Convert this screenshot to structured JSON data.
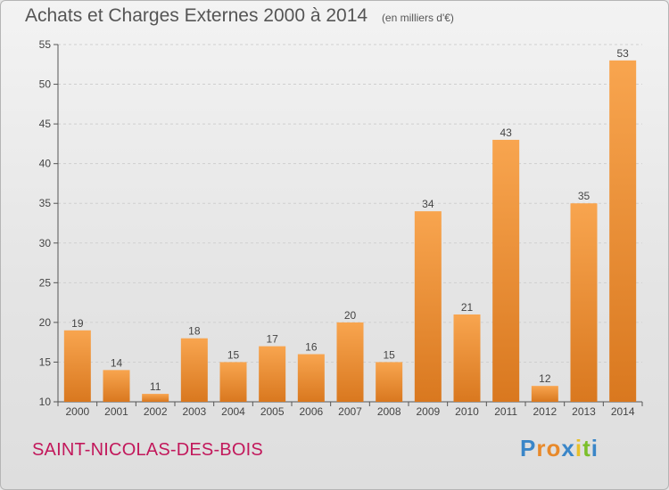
{
  "header": {
    "title": "Achats et Charges Externes 2000 à 2014",
    "unit": "(en milliers d'€)"
  },
  "footer": {
    "commune": "SAINT-NICOLAS-DES-BOIS",
    "logo": {
      "text": "Proxiti",
      "letter_colors": [
        "#3a86c8",
        "#e8892a",
        "#e8892a",
        "#3a86c8",
        "#e8c02a",
        "#7bbf2a",
        "#3a86c8"
      ]
    }
  },
  "colors": {
    "bar_light": "#f8a54f",
    "bar_dark": "#d9781f",
    "axis": "#555555",
    "grid": "#cfcfcf"
  },
  "chart_data": {
    "type": "bar",
    "title": "Achats et Charges Externes 2000 à 2014",
    "subtitle": "(en milliers d'€)",
    "categories": [
      "2000",
      "2001",
      "2002",
      "2003",
      "2004",
      "2005",
      "2006",
      "2007",
      "2008",
      "2009",
      "2010",
      "2011",
      "2012",
      "2013",
      "2014"
    ],
    "values": [
      19,
      14,
      11,
      18,
      15,
      17,
      16,
      20,
      15,
      34,
      21,
      43,
      12,
      35,
      53
    ],
    "ylim": [
      10,
      55
    ],
    "yticks": [
      10,
      15,
      20,
      25,
      30,
      35,
      40,
      45,
      50,
      55
    ],
    "grid": "horizontal-dashed",
    "data_labels": true
  }
}
